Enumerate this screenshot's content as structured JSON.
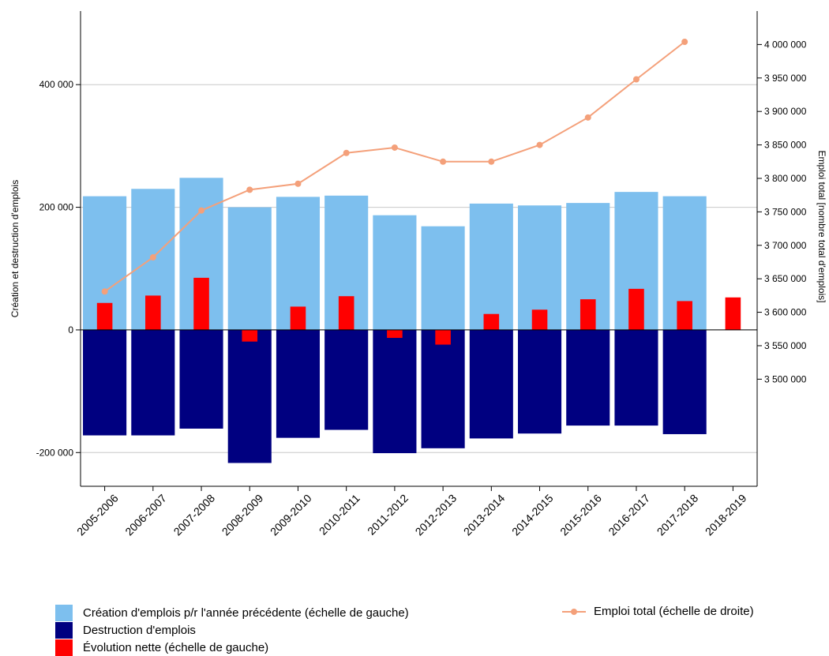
{
  "chart_data": {
    "type": "bar",
    "categories": [
      "2005-2006",
      "2006-2007",
      "2007-2008",
      "2008-2009",
      "2009-2010",
      "2010-2011",
      "2011-2012",
      "2012-2013",
      "2013-2014",
      "2014-2015",
      "2015-2016",
      "2016-2017",
      "2017-2018",
      "2018-2019"
    ],
    "series": [
      {
        "name": "Création d'emplois p/r l'année précédente (échelle de gauche)",
        "axis": "left",
        "kind": "bar",
        "color": "#7dbfee",
        "values": [
          218000,
          230000,
          248000,
          200000,
          217000,
          219000,
          187000,
          169000,
          206000,
          203000,
          207000,
          225000,
          218000,
          null
        ]
      },
      {
        "name": "Destruction d'emplois",
        "axis": "left",
        "kind": "bar",
        "color": "#000080",
        "values": [
          -172000,
          -172000,
          -161000,
          -217000,
          -176000,
          -163000,
          -201000,
          -193000,
          -177000,
          -169000,
          -156000,
          -156000,
          -170000,
          null
        ]
      },
      {
        "name": "Évolution nette (échelle de gauche)",
        "axis": "left",
        "kind": "bar-narrow",
        "color": "#ff0000",
        "values": [
          44000,
          56000,
          85000,
          -19000,
          38000,
          55000,
          -13000,
          -24000,
          26000,
          33000,
          50000,
          67000,
          47000,
          53000
        ]
      },
      {
        "name": "Emploi total (échelle de droite)",
        "axis": "right",
        "kind": "line",
        "color": "#f4a07a",
        "values": [
          3631000,
          3682000,
          3752000,
          3783000,
          3792000,
          3838000,
          3846000,
          3825000,
          3825000,
          3850000,
          3891000,
          3948000,
          4004000,
          null
        ]
      }
    ],
    "ylabel": "Création et destruction d'emplois",
    "y2label": "Emploi total [nombre total d'emplois]",
    "ylim": [
      -255000,
      520000
    ],
    "yticks": [
      -200000,
      0,
      200000,
      400000
    ],
    "ytick_labels": [
      "-200 000",
      "0",
      "200 000",
      "400 000"
    ],
    "y2lim": [
      3340000,
      4050000
    ],
    "y2ticks": [
      3500000,
      3550000,
      3600000,
      3650000,
      3700000,
      3750000,
      3800000,
      3850000,
      3900000,
      3950000,
      4000000
    ],
    "y2tick_labels": [
      "3 500 000",
      "3 550 000",
      "3 600 000",
      "3 650 000",
      "3 700 000",
      "3 750 000",
      "3 800 000",
      "3 850 000",
      "3 900 000",
      "3 950 000",
      "4 000 000"
    ],
    "grid": true,
    "legend_position": "bottom"
  },
  "legend": {
    "creation": "Création d'emplois p/r l'année précédente (échelle de gauche)",
    "destruction": "Destruction d'emplois",
    "net": "Évolution nette (échelle de gauche)",
    "total": "Emploi total (échelle de droite)"
  }
}
